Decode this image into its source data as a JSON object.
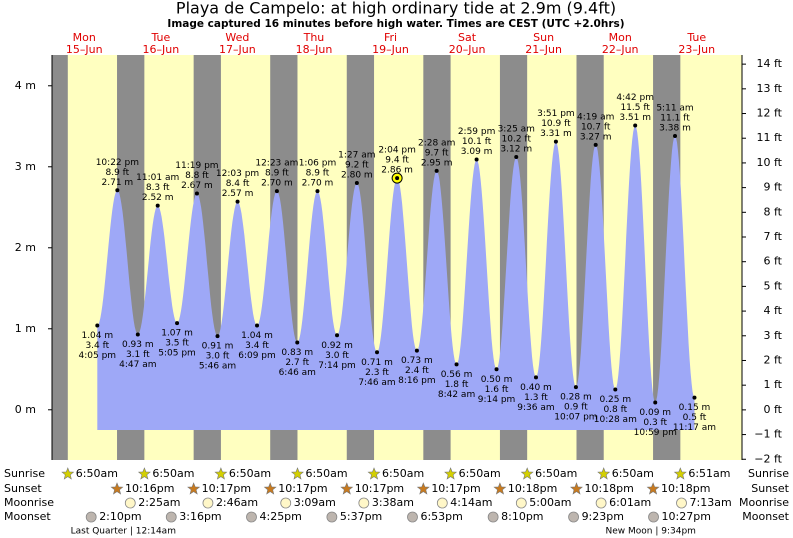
{
  "chart_data": {
    "type": "tide",
    "title": "Playa de Campelo: at high  ordinary tide at 2.9m (9.4ft)",
    "subtitle": "Image captured 16 minutes before high water. Times are CEST (UTC +2.0hrs)",
    "ylim": [
      -0.62,
      4.38
    ],
    "yticks": [
      {
        "value": 0,
        "label": "0 m"
      },
      {
        "value": 1,
        "label": "1 m"
      },
      {
        "value": 2,
        "label": "2 m"
      },
      {
        "value": 3,
        "label": "3 m"
      },
      {
        "value": 4,
        "label": "4 m"
      }
    ],
    "y2lim": [
      -2.03,
      14.37
    ],
    "y2ticks": [
      {
        "value": -2,
        "label": "−2 ft"
      },
      {
        "value": -1,
        "label": "−1 ft"
      },
      {
        "value": 0,
        "label": "0 ft"
      },
      {
        "value": 1,
        "label": "1 ft"
      },
      {
        "value": 2,
        "label": "2 ft"
      },
      {
        "value": 3,
        "label": "3 ft"
      },
      {
        "value": 4,
        "label": "4 ft"
      },
      {
        "value": 5,
        "label": "5 ft"
      },
      {
        "value": 6,
        "label": "6 ft"
      },
      {
        "value": 7,
        "label": "7 ft"
      },
      {
        "value": 8,
        "label": "8 ft"
      },
      {
        "value": 9,
        "label": "9 ft"
      },
      {
        "value": 10,
        "label": "10 ft"
      },
      {
        "value": 11,
        "label": "11 ft"
      },
      {
        "value": 12,
        "label": "12 ft"
      },
      {
        "value": 13,
        "label": "13 ft"
      },
      {
        "value": 14,
        "label": "14 ft"
      }
    ],
    "color": "#9ea8f7",
    "row_labels": [
      "Sunrise",
      "Sunset",
      "Moonrise",
      "Moonset"
    ],
    "days": [
      {
        "weekday": "Mon",
        "date": "15–Jun",
        "sunrise": "6:50am",
        "sunset": "10:16pm",
        "moonset": "2:10pm",
        "tides": [
          {
            "time": "4:05 pm",
            "value": 1.04,
            "value_label": "1.04 m",
            "ft": "3.4 ft"
          },
          {
            "time": "10:22 pm",
            "value": 2.71,
            "value_label": "2.71 m",
            "ft": "8.9 ft"
          }
        ]
      },
      {
        "weekday": "Tue",
        "date": "16–Jun",
        "sunrise": "6:50am",
        "sunset": "10:17pm",
        "moonrise": "2:25am",
        "moonset": "3:16pm",
        "moon_phase": "Last Quarter | 12:14am",
        "tides": [
          {
            "time": "4:47 am",
            "value": 0.93,
            "value_label": "0.93 m",
            "ft": "3.1 ft"
          },
          {
            "time": "11:01 am",
            "value": 2.52,
            "value_label": "2.52 m",
            "ft": "8.3 ft"
          },
          {
            "time": "5:05 pm",
            "value": 1.07,
            "value_label": "1.07 m",
            "ft": "3.5 ft"
          },
          {
            "time": "11:19 pm",
            "value": 2.67,
            "value_label": "2.67 m",
            "ft": "8.8 ft"
          }
        ]
      },
      {
        "weekday": "Wed",
        "date": "17–Jun",
        "sunrise": "6:50am",
        "sunset": "10:17pm",
        "moonrise": "2:46am",
        "moonset": "4:25pm",
        "tides": [
          {
            "time": "5:46 am",
            "value": 0.91,
            "value_label": "0.91 m",
            "ft": "3.0 ft"
          },
          {
            "time": "12:03 pm",
            "value": 2.57,
            "value_label": "2.57 m",
            "ft": "8.4 ft"
          },
          {
            "time": "6:09 pm",
            "value": 1.04,
            "value_label": "1.04 m",
            "ft": "3.4 ft"
          }
        ]
      },
      {
        "weekday": "Thu",
        "date": "18–Jun",
        "sunrise": "6:50am",
        "sunset": "10:17pm",
        "moonrise": "3:09am",
        "moonset": "5:37pm",
        "tides": [
          {
            "time": "12:23 am",
            "value": 2.7,
            "value_label": "2.70 m",
            "ft": "8.9 ft"
          },
          {
            "time": "6:46 am",
            "value": 0.83,
            "value_label": "0.83 m",
            "ft": "2.7 ft"
          },
          {
            "time": "1:06 pm",
            "value": 2.7,
            "value_label": "2.70 m",
            "ft": "8.9 ft"
          },
          {
            "time": "7:14 pm",
            "value": 0.92,
            "value_label": "0.92 m",
            "ft": "3.0 ft"
          }
        ]
      },
      {
        "weekday": "Fri",
        "date": "19–Jun",
        "sunrise": "6:50am",
        "sunset": "10:17pm",
        "moonrise": "3:38am",
        "moonset": "6:53pm",
        "tides": [
          {
            "time": "1:27 am",
            "value": 2.8,
            "value_label": "2.80 m",
            "ft": "9.2 ft"
          },
          {
            "time": "7:46 am",
            "value": 0.71,
            "value_label": "0.71 m",
            "ft": "2.3 ft"
          },
          {
            "time": "2:04 pm",
            "value": 2.86,
            "value_label": "2.86 m",
            "ft": "9.4 ft",
            "current": true
          },
          {
            "time": "8:16 pm",
            "value": 0.73,
            "value_label": "0.73 m",
            "ft": "2.4 ft"
          }
        ]
      },
      {
        "weekday": "Sat",
        "date": "20–Jun",
        "sunrise": "6:50am",
        "sunset": "10:18pm",
        "moonrise": "4:14am",
        "moonset": "8:10pm",
        "tides": [
          {
            "time": "2:28 am",
            "value": 2.95,
            "value_label": "2.95 m",
            "ft": "9.7 ft"
          },
          {
            "time": "8:42 am",
            "value": 0.56,
            "value_label": "0.56 m",
            "ft": "1.8 ft"
          },
          {
            "time": "2:59 pm",
            "value": 3.09,
            "value_label": "3.09 m",
            "ft": "10.1 ft"
          },
          {
            "time": "9:14 pm",
            "value": 0.5,
            "value_label": "0.50 m",
            "ft": "1.6 ft"
          }
        ]
      },
      {
        "weekday": "Sun",
        "date": "21–Jun",
        "sunrise": "6:50am",
        "sunset": "10:18pm",
        "moonrise": "5:00am",
        "moonset": "9:23pm",
        "tides": [
          {
            "time": "3:25 am",
            "value": 3.12,
            "value_label": "3.12 m",
            "ft": "10.2 ft"
          },
          {
            "time": "9:36 am",
            "value": 0.4,
            "value_label": "0.40 m",
            "ft": "1.3 ft"
          },
          {
            "time": "3:51 pm",
            "value": 3.31,
            "value_label": "3.31 m",
            "ft": "10.9 ft"
          },
          {
            "time": "10:07 pm",
            "value": 0.28,
            "value_label": "0.28 m",
            "ft": "0.9 ft"
          }
        ]
      },
      {
        "weekday": "Mon",
        "date": "22–Jun",
        "sunrise": "6:50am",
        "sunset": "10:18pm",
        "moonrise": "6:01am",
        "moonset": "10:27pm",
        "moon_phase": "New Moon | 9:34pm",
        "tides": [
          {
            "time": "4:19 am",
            "value": 3.27,
            "value_label": "3.27 m",
            "ft": "10.7 ft"
          },
          {
            "time": "10:28 am",
            "value": 0.25,
            "value_label": "0.25 m",
            "ft": "0.8 ft"
          },
          {
            "time": "4:42 pm",
            "value": 3.51,
            "value_label": "3.51 m",
            "ft": "11.5 ft"
          },
          {
            "time": "10:59 pm",
            "value": 0.09,
            "value_label": "0.09 m",
            "ft": "0.3 ft"
          }
        ]
      },
      {
        "weekday": "Tue",
        "date": "23–Jun",
        "sunrise": "6:51am",
        "moonrise": "7:13am",
        "tides": [
          {
            "time": "5:11 am",
            "value": 3.38,
            "value_label": "3.38 m",
            "ft": "11.1 ft"
          },
          {
            "time": "11:17 am",
            "value": 0.15,
            "value_label": "0.15 m",
            "ft": "0.5 ft"
          }
        ]
      }
    ]
  }
}
